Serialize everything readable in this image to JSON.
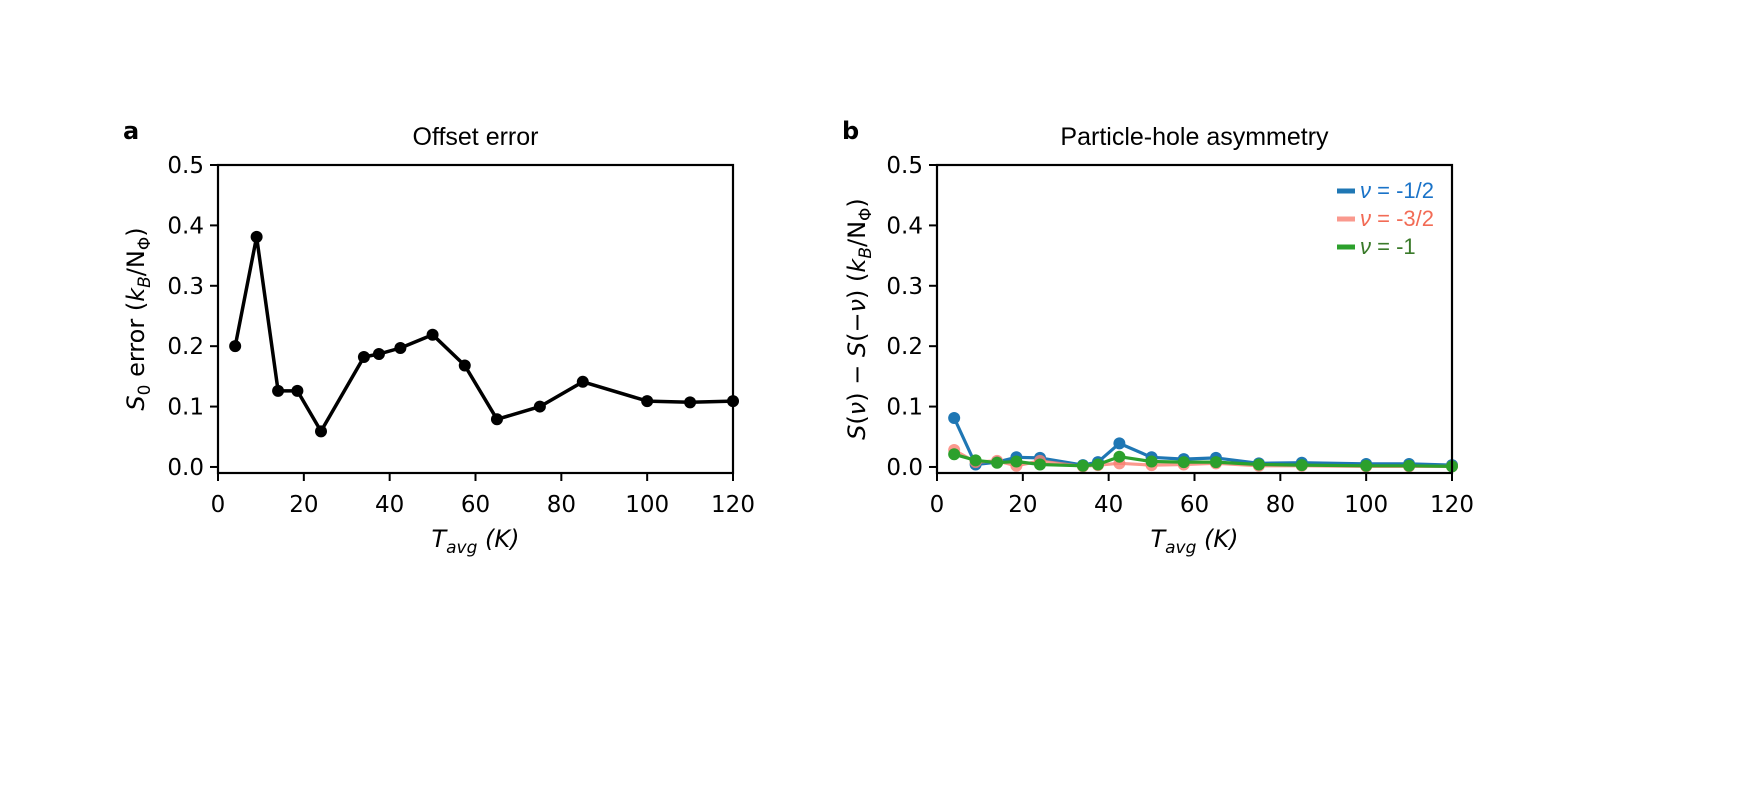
{
  "chart_data": [
    {
      "type": "line",
      "panel_letter": "a",
      "title": "Offset error",
      "xlabel": "T_avg (K)",
      "xlabel_main": "T",
      "xlabel_sub": "avg",
      "xlabel_unit": "(K)",
      "ylabel": "S0 error (kB/NΦ)",
      "xlim": [
        0,
        120
      ],
      "ylim": [
        -0.01,
        0.5
      ],
      "xticks": [
        0,
        20,
        40,
        60,
        80,
        100,
        120
      ],
      "xtick_labels": [
        "0",
        "20",
        "40",
        "60",
        "80",
        "100",
        "120"
      ],
      "yticks": [
        0.0,
        0.1,
        0.2,
        0.3,
        0.4,
        0.5
      ],
      "ytick_labels": [
        "0.0",
        "0.1",
        "0.2",
        "0.3",
        "0.4",
        "0.5"
      ],
      "grid": false,
      "series": [
        {
          "name": "S0 error",
          "color": "#000000",
          "x": [
            4,
            9,
            14,
            18.5,
            24,
            34,
            37.5,
            42.5,
            50,
            57.5,
            65,
            75,
            85,
            100,
            110,
            120
          ],
          "y": [
            0.2,
            0.381,
            0.126,
            0.126,
            0.059,
            0.182,
            0.187,
            0.197,
            0.219,
            0.168,
            0.079,
            0.1,
            0.141,
            0.109,
            0.107,
            0.109
          ]
        }
      ]
    },
    {
      "type": "line",
      "panel_letter": "b",
      "title": "Particle-hole asymmetry",
      "xlabel": "T_avg (K)",
      "xlabel_main": "T",
      "xlabel_sub": "avg",
      "xlabel_unit": "(K)",
      "ylabel": "S(ν) − S(−ν)  (kB/NΦ)",
      "xlim": [
        0,
        120
      ],
      "ylim": [
        -0.01,
        0.5
      ],
      "xticks": [
        0,
        20,
        40,
        60,
        80,
        100,
        120
      ],
      "xtick_labels": [
        "0",
        "20",
        "40",
        "60",
        "80",
        "100",
        "120"
      ],
      "yticks": [
        0.0,
        0.1,
        0.2,
        0.3,
        0.4,
        0.5
      ],
      "ytick_labels": [
        "0.0",
        "0.1",
        "0.2",
        "0.3",
        "0.4",
        "0.5"
      ],
      "grid": false,
      "legend_position": "top-right",
      "series": [
        {
          "name": "ν = -1/2",
          "color": "#1f77b4",
          "text_color": "#1a73c8",
          "x": [
            4,
            9,
            14,
            18.5,
            24,
            34,
            37.5,
            42.5,
            50,
            57.5,
            65,
            75,
            85,
            100,
            110,
            120
          ],
          "y": [
            0.081,
            0.004,
            0.008,
            0.016,
            0.015,
            0.003,
            0.008,
            0.039,
            0.016,
            0.013,
            0.015,
            0.006,
            0.007,
            0.005,
            0.005,
            0.003
          ]
        },
        {
          "name": "ν = -3/2",
          "color": "#fa8072",
          "text_color": "#f26b55",
          "x": [
            4,
            9,
            14,
            18.5,
            24,
            34,
            37.5,
            42.5,
            50,
            57.5,
            65,
            75,
            85,
            100,
            110,
            120
          ],
          "y": [
            0.028,
            0.008,
            0.01,
            0.002,
            0.01,
            0.001,
            0.003,
            0.006,
            0.003,
            0.004,
            0.006,
            0.002,
            0.002,
            0.001,
            0.001,
            0.001
          ]
        },
        {
          "name": "ν = -1",
          "color": "#2ca02c",
          "text_color": "#3a7a2a",
          "x": [
            4,
            9,
            14,
            18.5,
            24,
            34,
            37.5,
            42.5,
            50,
            57.5,
            65,
            75,
            85,
            100,
            110,
            120
          ],
          "y": [
            0.021,
            0.011,
            0.007,
            0.009,
            0.004,
            0.002,
            0.004,
            0.017,
            0.009,
            0.008,
            0.008,
            0.004,
            0.003,
            0.002,
            0.002,
            0.001
          ]
        }
      ]
    }
  ]
}
